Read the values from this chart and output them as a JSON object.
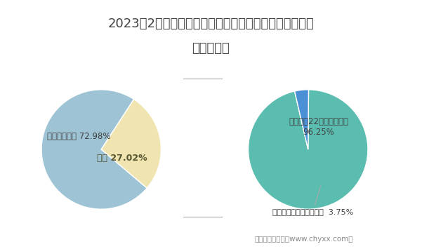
{
  "title_line1": "2023年2月广州三雅摩托车有限公司所属地区摩托车销量",
  "title_line2": "占比统计图",
  "title_fontsize": 13,
  "left_pie": {
    "values": [
      72.98,
      27.02
    ],
    "labels": [
      "全国其他地区 72.98%",
      "广东 27.02%"
    ],
    "colors": [
      "#9dc3d4",
      "#f0e5b0"
    ],
    "startangle": 57
  },
  "right_pie": {
    "values": [
      96.25,
      3.75
    ],
    "labels_top": "广东其他22家摩托车车企\n96.25%",
    "labels_bottom": "广州三雅摩托车有限公司  3.75%",
    "colors": [
      "#5bbcb0",
      "#4b8fd4"
    ],
    "startangle": 103
  },
  "footer": "制图：智研咨询（www.chyxx.com）",
  "footer_fontsize": 7.5,
  "bg_color": "#ffffff",
  "text_color": "#404040",
  "line_color": "#aaaaaa"
}
